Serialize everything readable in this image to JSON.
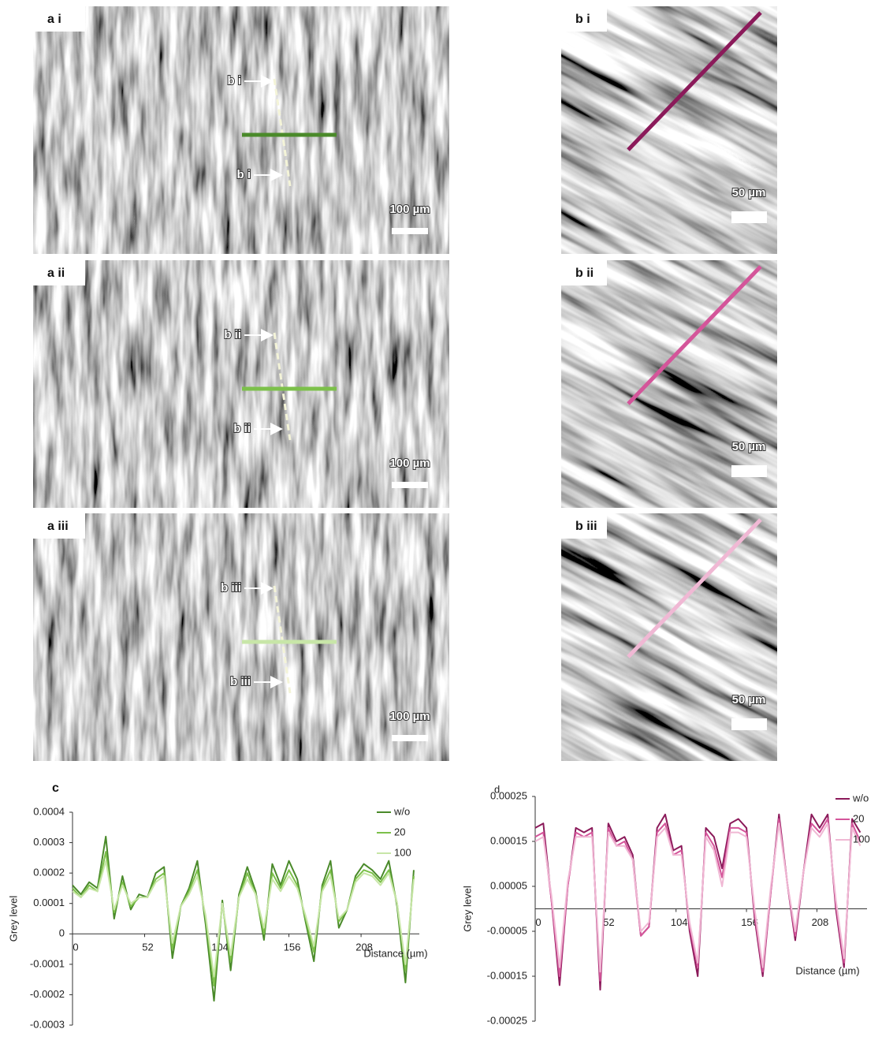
{
  "panels": [
    {
      "label": "a i",
      "arrows": [
        "b i",
        "b i"
      ],
      "scale_bar": "100 µm"
    },
    {
      "label": "a ii",
      "arrows": [
        "b ii",
        "b ii"
      ],
      "scale_bar": "100 µm"
    },
    {
      "label": "a iii",
      "arrows": [
        "b iii",
        "b iii"
      ],
      "scale_bar": "100 µm"
    }
  ],
  "insets": [
    {
      "label": "b i",
      "scale_bar": "50 µm"
    },
    {
      "label": "b ii",
      "scale_bar": "50 µm"
    },
    {
      "label": "b iii",
      "scale_bar": "50 µm"
    }
  ],
  "chart_data": [
    {
      "type": "line",
      "title": "c",
      "x_label": "Distance (µm)",
      "y_label": "Grey level",
      "xlim": [
        0,
        250
      ],
      "xticks": [
        0,
        52,
        104,
        156,
        208
      ],
      "ylim": [
        -0.0003,
        0.0004
      ],
      "yticks": [
        0.0004,
        0.0003,
        0.0002,
        0.0001,
        0,
        -0.0001,
        -0.0002,
        -0.0003
      ],
      "grid": false,
      "legend": "upper right",
      "x": [
        0,
        6,
        12,
        18,
        24,
        30,
        36,
        42,
        48,
        54,
        60,
        66,
        72,
        78,
        84,
        90,
        96,
        102,
        108,
        114,
        120,
        126,
        132,
        138,
        144,
        150,
        156,
        162,
        168,
        174,
        180,
        186,
        192,
        198,
        204,
        210,
        216,
        222,
        228,
        234,
        240,
        246
      ],
      "series": [
        {
          "name": "w/o",
          "color": "#4a8a2a",
          "values": [
            0.00016,
            0.00013,
            0.00017,
            0.00015,
            0.00032,
            5e-05,
            0.00019,
            8e-05,
            0.00013,
            0.00012,
            0.0002,
            0.00022,
            -8e-05,
            9e-05,
            0.00015,
            0.00024,
            3e-05,
            -0.00022,
            0.00011,
            -0.00012,
            0.00013,
            0.00022,
            0.00014,
            -2e-05,
            0.00023,
            0.00016,
            0.00024,
            0.00018,
            4e-05,
            -9e-05,
            0.00016,
            0.00024,
            2e-05,
            8e-05,
            0.00019,
            0.00023,
            0.00021,
            0.00018,
            0.00024,
            9e-05,
            -0.00016,
            0.00021
          ]
        },
        {
          "name": "20",
          "color": "#7cc04a",
          "values": [
            0.00015,
            0.00012,
            0.00016,
            0.00014,
            0.00027,
            7e-05,
            0.00017,
            9e-05,
            0.00012,
            0.00012,
            0.00018,
            0.0002,
            -5e-05,
            9e-05,
            0.00014,
            0.00021,
            5e-05,
            -0.00017,
            0.0001,
            -9e-05,
            0.00012,
            0.0002,
            0.00013,
            0,
            0.0002,
            0.00015,
            0.00021,
            0.00016,
            5e-05,
            -6e-05,
            0.00015,
            0.00021,
            4e-05,
            8e-05,
            0.00018,
            0.00021,
            0.0002,
            0.00017,
            0.00021,
            0.0001,
            -0.00012,
            0.00019
          ]
        },
        {
          "name": "100",
          "color": "#c8e6a8",
          "values": [
            0.00014,
            0.00012,
            0.00015,
            0.00014,
            0.00024,
            8e-05,
            0.00016,
            0.0001,
            0.00012,
            0.00012,
            0.00017,
            0.00019,
            -3e-05,
            9e-05,
            0.00013,
            0.00019,
            6e-05,
            -0.00014,
            0.0001,
            -7e-05,
            0.00012,
            0.00018,
            0.00013,
            2e-05,
            0.00018,
            0.00014,
            0.00019,
            0.00015,
            6e-05,
            -4e-05,
            0.00014,
            0.00019,
            5e-05,
            8e-05,
            0.00017,
            0.0002,
            0.00019,
            0.00016,
            0.0002,
            0.0001,
            -0.0001,
            0.00018
          ]
        }
      ]
    },
    {
      "type": "line",
      "title": "d",
      "x_label": "Distance (µm)",
      "y_label": "Grey level",
      "xlim": [
        0,
        245
      ],
      "xticks": [
        0,
        52,
        104,
        156,
        208
      ],
      "ylim": [
        -0.00025,
        0.00025
      ],
      "yticks": [
        0.00025,
        0.00015,
        5e-05,
        -5e-05,
        -0.00015,
        -0.00025
      ],
      "grid": false,
      "legend": "upper right",
      "x": [
        0,
        6,
        12,
        18,
        24,
        30,
        36,
        42,
        48,
        54,
        60,
        66,
        72,
        78,
        84,
        90,
        96,
        102,
        108,
        114,
        120,
        126,
        132,
        138,
        144,
        150,
        156,
        162,
        168,
        174,
        180,
        186,
        192,
        198,
        204,
        210,
        216,
        222,
        228,
        234,
        240
      ],
      "series": [
        {
          "name": "w/o",
          "color": "#8b1a5a",
          "values": [
            0.00018,
            0.00019,
            2e-05,
            -0.00017,
            5e-05,
            0.00018,
            0.00017,
            0.00018,
            -0.00018,
            0.00019,
            0.00015,
            0.00016,
            0.00012,
            -6e-05,
            -4e-05,
            0.00018,
            0.00021,
            0.00013,
            0.00014,
            -5e-05,
            -0.00015,
            0.00018,
            0.00016,
            9e-05,
            0.00019,
            0.0002,
            0.00018,
            -2e-05,
            -0.00015,
            4e-05,
            0.00021,
            6e-05,
            -7e-05,
            8e-05,
            0.00021,
            0.00018,
            0.00021,
            0,
            -0.00013,
            0.0002,
            0.00017
          ]
        },
        {
          "name": "20",
          "color": "#d4559a",
          "values": [
            0.00016,
            0.00017,
            2e-05,
            -0.00015,
            5e-05,
            0.00017,
            0.00016,
            0.00017,
            -0.00016,
            0.00018,
            0.00014,
            0.00015,
            0.00011,
            -6e-05,
            -4e-05,
            0.00017,
            0.00019,
            0.00012,
            0.00013,
            -4e-05,
            -0.00013,
            0.00017,
            0.00014,
            7e-05,
            0.00018,
            0.00018,
            0.00017,
            -1e-05,
            -0.00014,
            4e-05,
            0.0002,
            6e-05,
            -6e-05,
            8e-05,
            0.00019,
            0.00017,
            0.0002,
            1e-05,
            -0.00012,
            0.00019,
            0.00015
          ]
        },
        {
          "name": "100",
          "color": "#f0b8d4",
          "values": [
            0.00015,
            0.00016,
            3e-05,
            -0.00013,
            6e-05,
            0.00016,
            0.00016,
            0.00016,
            -0.00014,
            0.00017,
            0.00014,
            0.00014,
            0.00011,
            -5e-05,
            -3e-05,
            0.00016,
            0.00018,
            0.00012,
            0.00012,
            -3e-05,
            -0.00012,
            0.00016,
            0.00013,
            5e-05,
            0.00017,
            0.00017,
            0.00016,
            0,
            -0.00013,
            5e-05,
            0.00019,
            6e-05,
            -5e-05,
            8e-05,
            0.00018,
            0.00016,
            0.00019,
            2e-05,
            -0.00011,
            0.00018,
            0.00014
          ]
        }
      ]
    }
  ]
}
